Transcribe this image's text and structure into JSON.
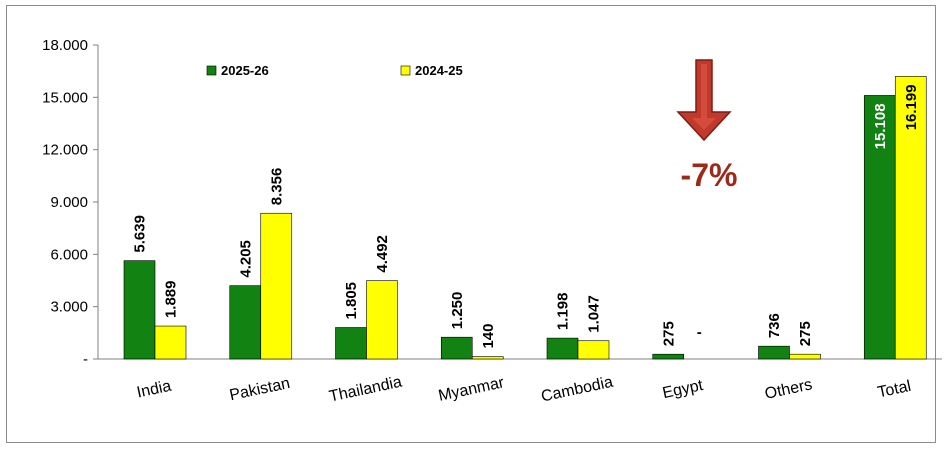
{
  "chart_data": {
    "type": "bar",
    "categories": [
      "India",
      "Pakistan",
      "Thailandia",
      "Myanmar",
      "Cambodia",
      "Egypt",
      "Others",
      "Total"
    ],
    "series": [
      {
        "name": "2025-26",
        "color": "#128212",
        "values": [
          5639,
          4205,
          1805,
          1250,
          1198,
          275,
          736,
          15108
        ],
        "labels": [
          "5.639",
          "4.205",
          "1.805",
          "1.250",
          "1.198",
          "275",
          "736",
          "15.108"
        ]
      },
      {
        "name": "2024-25",
        "color": "#ffff00",
        "values": [
          1889,
          8356,
          4492,
          140,
          1047,
          0,
          275,
          16199
        ],
        "labels": [
          "1.889",
          "8.356",
          "4.492",
          "140",
          "1.047",
          "-",
          "275",
          "16.199"
        ]
      }
    ],
    "yticks": [
      0,
      3000,
      6000,
      9000,
      12000,
      15000,
      18000
    ],
    "ytick_labels": [
      "-",
      "3.000",
      "6.000",
      "9.000",
      "12.000",
      "15.000",
      "18.000"
    ],
    "ylim": [
      0,
      18000
    ],
    "grid": false,
    "legend_position": "top-left",
    "annotation": {
      "text": "-7%",
      "icon": "down-arrow-icon",
      "arrow_color": "#c0392b",
      "text_color": "#9b2a1a"
    }
  }
}
